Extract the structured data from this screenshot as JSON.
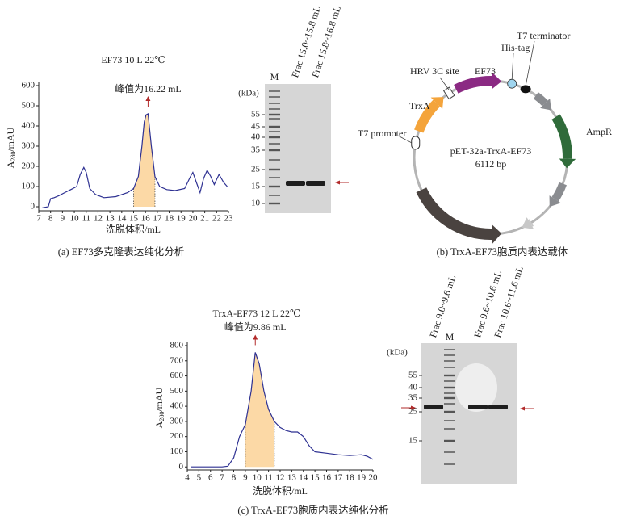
{
  "chart_data": [
    {
      "type": "line",
      "title": "EF73  10 L  22℃",
      "annotation": "峰值为16.22 mL",
      "y_label": [
        "A",
        "280",
        "/mAU"
      ],
      "x_label": "洗脱体积/mL",
      "caption": "(a) EF73多克隆表达纯化分析",
      "x": [
        7.3,
        7.8,
        8.0,
        8.3,
        8.7,
        9.2,
        9.7,
        10.2,
        10.5,
        10.8,
        11.0,
        11.3,
        11.8,
        12.5,
        13.5,
        14.5,
        15.0,
        15.4,
        15.7,
        15.9,
        16.05,
        16.22,
        16.5,
        16.8,
        17.2,
        17.8,
        18.5,
        19.3,
        19.8,
        20.0,
        20.3,
        20.6,
        20.9,
        21.2,
        21.5,
        21.8,
        22.2,
        22.6,
        22.9
      ],
      "values": [
        -5,
        0,
        40,
        45,
        55,
        70,
        85,
        100,
        160,
        195,
        170,
        90,
        60,
        45,
        50,
        70,
        90,
        150,
        300,
        420,
        455,
        460,
        300,
        150,
        100,
        85,
        80,
        90,
        150,
        170,
        120,
        70,
        140,
        180,
        150,
        110,
        160,
        120,
        100
      ],
      "color": "#2e3192",
      "fill_range": [
        15.0,
        16.8
      ],
      "fill_color": "#fcd9a6",
      "xlim": [
        7,
        23
      ],
      "xticks": [
        7,
        8,
        9,
        10,
        11,
        12,
        13,
        14,
        15,
        16,
        17,
        18,
        19,
        20,
        21,
        22,
        23
      ],
      "ylim": [
        -20,
        600
      ],
      "yticks": [
        0,
        100,
        200,
        300,
        400,
        500,
        600
      ]
    },
    {
      "type": "line",
      "title": "TrxA-EF73  12 L  22℃",
      "annotation": "峰值为9.86 mL",
      "y_label": [
        "A",
        "280",
        "/mAU"
      ],
      "x_label": "洗脱体积/mL",
      "caption": "(c) TrxA-EF73胞质内表达纯化分析",
      "x": [
        4.3,
        7.0,
        7.5,
        8.0,
        8.5,
        9.0,
        9.5,
        9.86,
        10.2,
        10.6,
        11.0,
        11.5,
        12.0,
        12.5,
        13.0,
        13.5,
        14.0,
        14.5,
        15.0,
        16.0,
        17.0,
        18.0,
        19.0,
        19.5,
        20.0
      ],
      "values": [
        0,
        0,
        5,
        60,
        200,
        280,
        500,
        755,
        680,
        500,
        380,
        300,
        260,
        240,
        230,
        230,
        200,
        140,
        100,
        90,
        80,
        75,
        80,
        70,
        50
      ],
      "color": "#2e3192",
      "fill_range": [
        9.0,
        11.5
      ],
      "fill_color": "#fcd9a6",
      "xlim": [
        4,
        20
      ],
      "xticks": [
        4,
        5,
        6,
        7,
        8,
        9,
        10,
        11,
        12,
        13,
        14,
        15,
        16,
        17,
        18,
        19,
        20
      ],
      "ylim": [
        -20,
        800
      ],
      "yticks": [
        0,
        100,
        200,
        300,
        400,
        500,
        600,
        700,
        800
      ]
    }
  ],
  "gels": [
    {
      "unit": "(kDa)",
      "lanes": [
        "M",
        "Frac 15.0~15.8 mL",
        "Frac 15.8~16.8 mL"
      ],
      "markers": [
        "55",
        "45",
        "40",
        "35",
        "25",
        "15",
        "10"
      ]
    },
    {
      "unit": "(kDa)",
      "lanes": [
        "Frac 9.0~9.6 mL",
        "M",
        "Frac 9.6~10.6 mL",
        "Frac 10.6~11.6 mL"
      ],
      "markers": [
        "55",
        "40",
        "35",
        "25",
        "15"
      ]
    }
  ],
  "plasmid": {
    "name": "pET-32a-TrxA-EF73",
    "size": "6112 bp",
    "features": [
      "T7 promoter",
      "TrxA",
      "HRV 3C site",
      "EF73",
      "His-tag",
      "T7 terminator",
      "AmpR"
    ],
    "caption": "(b) TrxA-EF73胞质内表达载体"
  }
}
